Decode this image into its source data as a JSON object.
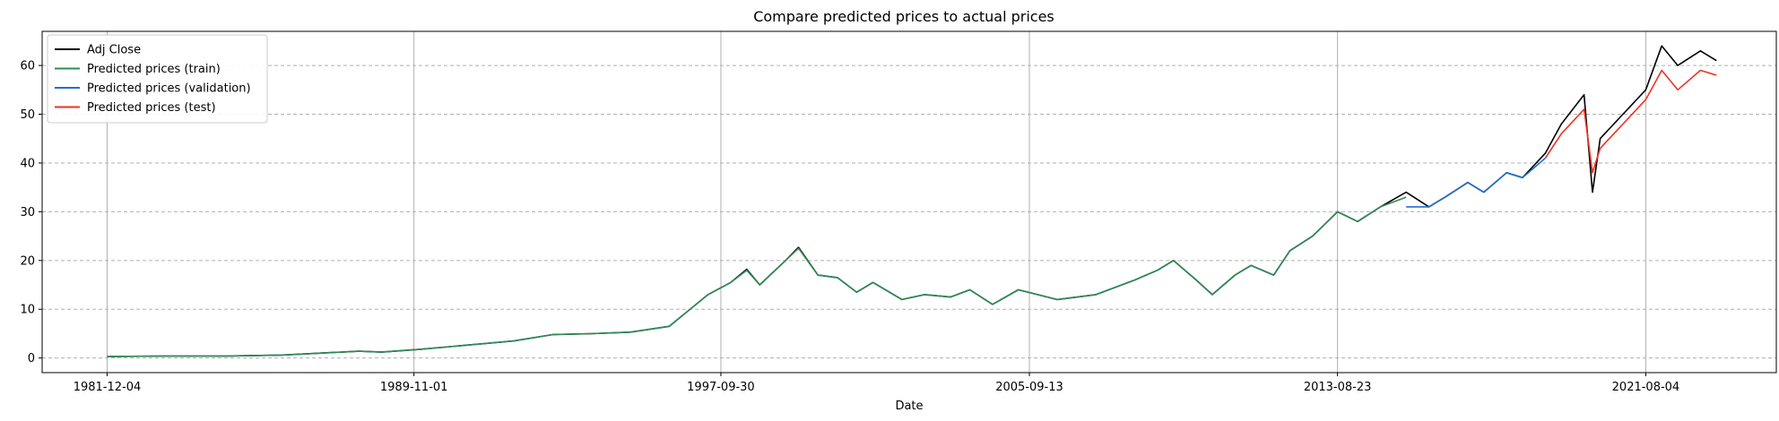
{
  "chart_data": {
    "type": "line",
    "title": "Compare predicted prices to actual prices",
    "xlabel": "Date",
    "ylabel": "",
    "x_axis": "date",
    "xlim": [
      "1980-04-01",
      "2024-12-15"
    ],
    "ylim": [
      -3,
      67
    ],
    "xticks": [
      "1981-12-04",
      "1989-11-01",
      "1997-09-30",
      "2005-09-13",
      "2013-08-23",
      "2021-08-04"
    ],
    "yticks": [
      0,
      10,
      20,
      30,
      40,
      50,
      60
    ],
    "grid": true,
    "legend": {
      "position": "top-left",
      "entries": [
        {
          "label": "Adj Close",
          "color": "#000000"
        },
        {
          "label": "Predicted prices (train)",
          "color": "#2e8b57"
        },
        {
          "label": "Predicted prices (validation)",
          "color": "#1f6fd1"
        },
        {
          "label": "Predicted prices (test)",
          "color": "#ee3322"
        }
      ]
    },
    "series": [
      {
        "name": "Adj Close",
        "color": "#000000",
        "points": [
          [
            "1981-12-04",
            0.3
          ],
          [
            "1983-06-01",
            0.4
          ],
          [
            "1985-01-01",
            0.4
          ],
          [
            "1986-06-01",
            0.6
          ],
          [
            "1987-09-01",
            1.1
          ],
          [
            "1988-06-01",
            1.4
          ],
          [
            "1989-01-01",
            1.2
          ],
          [
            "1990-01-01",
            1.8
          ],
          [
            "1991-01-01",
            2.5
          ],
          [
            "1992-06-01",
            3.5
          ],
          [
            "1993-06-01",
            4.8
          ],
          [
            "1994-06-01",
            5.0
          ],
          [
            "1995-06-01",
            5.3
          ],
          [
            "1996-06-01",
            6.5
          ],
          [
            "1997-06-01",
            13.0
          ],
          [
            "1998-01-01",
            15.5
          ],
          [
            "1998-06-01",
            18.2
          ],
          [
            "1998-10-01",
            15.0
          ],
          [
            "1999-06-01",
            20.0
          ],
          [
            "1999-10-01",
            22.7
          ],
          [
            "2000-04-01",
            17.0
          ],
          [
            "2000-10-01",
            16.5
          ],
          [
            "2001-04-01",
            13.5
          ],
          [
            "2001-09-01",
            15.5
          ],
          [
            "2002-06-01",
            12.0
          ],
          [
            "2003-01-01",
            13.0
          ],
          [
            "2003-09-01",
            12.5
          ],
          [
            "2004-03-01",
            14.0
          ],
          [
            "2004-10-01",
            11.0
          ],
          [
            "2005-06-01",
            14.0
          ],
          [
            "2006-06-01",
            12.0
          ],
          [
            "2007-06-01",
            13.0
          ],
          [
            "2008-06-01",
            16.0
          ],
          [
            "2009-01-01",
            18.0
          ],
          [
            "2009-06-01",
            20.0
          ],
          [
            "2010-01-01",
            16.0
          ],
          [
            "2010-06-01",
            13.0
          ],
          [
            "2011-01-01",
            17.0
          ],
          [
            "2011-06-01",
            19.0
          ],
          [
            "2012-01-01",
            17.0
          ],
          [
            "2012-06-01",
            22.0
          ],
          [
            "2013-01-01",
            25.0
          ],
          [
            "2013-08-23",
            30.0
          ],
          [
            "2014-03-01",
            28.0
          ],
          [
            "2014-10-01",
            31.0
          ],
          [
            "2015-06-01",
            34.0
          ],
          [
            "2016-01-01",
            31.0
          ],
          [
            "2016-06-01",
            33.0
          ],
          [
            "2017-01-01",
            36.0
          ],
          [
            "2017-06-01",
            34.0
          ],
          [
            "2018-01-01",
            38.0
          ],
          [
            "2018-06-01",
            37.0
          ],
          [
            "2019-01-01",
            42.0
          ],
          [
            "2019-06-01",
            48.0
          ],
          [
            "2020-01-01",
            54.0
          ],
          [
            "2020-03-20",
            34.0
          ],
          [
            "2020-06-01",
            45.0
          ],
          [
            "2021-01-01",
            50.0
          ],
          [
            "2021-08-04",
            55.0
          ],
          [
            "2022-01-01",
            64.0
          ],
          [
            "2022-06-01",
            60.0
          ],
          [
            "2023-01-01",
            63.0
          ],
          [
            "2023-06-01",
            61.0
          ]
        ]
      },
      {
        "name": "Predicted prices (train)",
        "color": "#2e8b57",
        "points": [
          [
            "1981-12-04",
            0.3
          ],
          [
            "1983-06-01",
            0.4
          ],
          [
            "1985-01-01",
            0.4
          ],
          [
            "1986-06-01",
            0.6
          ],
          [
            "1987-09-01",
            1.1
          ],
          [
            "1988-06-01",
            1.4
          ],
          [
            "1989-01-01",
            1.2
          ],
          [
            "1990-01-01",
            1.8
          ],
          [
            "1991-01-01",
            2.5
          ],
          [
            "1992-06-01",
            3.5
          ],
          [
            "1993-06-01",
            4.8
          ],
          [
            "1994-06-01",
            5.0
          ],
          [
            "1995-06-01",
            5.3
          ],
          [
            "1996-06-01",
            6.5
          ],
          [
            "1997-06-01",
            13.0
          ],
          [
            "1998-01-01",
            15.5
          ],
          [
            "1998-06-01",
            18.0
          ],
          [
            "1998-10-01",
            15.0
          ],
          [
            "1999-06-01",
            20.0
          ],
          [
            "1999-10-01",
            22.5
          ],
          [
            "2000-04-01",
            17.0
          ],
          [
            "2000-10-01",
            16.5
          ],
          [
            "2001-04-01",
            13.5
          ],
          [
            "2001-09-01",
            15.5
          ],
          [
            "2002-06-01",
            12.0
          ],
          [
            "2003-01-01",
            13.0
          ],
          [
            "2003-09-01",
            12.5
          ],
          [
            "2004-03-01",
            14.0
          ],
          [
            "2004-10-01",
            11.0
          ],
          [
            "2005-06-01",
            14.0
          ],
          [
            "2006-06-01",
            12.0
          ],
          [
            "2007-06-01",
            13.0
          ],
          [
            "2008-06-01",
            16.0
          ],
          [
            "2009-01-01",
            18.0
          ],
          [
            "2009-06-01",
            20.0
          ],
          [
            "2010-01-01",
            16.0
          ],
          [
            "2010-06-01",
            13.0
          ],
          [
            "2011-01-01",
            17.0
          ],
          [
            "2011-06-01",
            19.0
          ],
          [
            "2012-01-01",
            17.0
          ],
          [
            "2012-06-01",
            22.0
          ],
          [
            "2013-01-01",
            25.0
          ],
          [
            "2013-08-23",
            30.0
          ],
          [
            "2014-03-01",
            28.0
          ],
          [
            "2014-10-01",
            31.0
          ],
          [
            "2015-06-01",
            33.0
          ]
        ]
      },
      {
        "name": "Predicted prices (validation)",
        "color": "#1f6fd1",
        "points": [
          [
            "2015-06-01",
            31.0
          ],
          [
            "2016-01-01",
            31.0
          ],
          [
            "2016-06-01",
            33.0
          ],
          [
            "2017-01-01",
            36.0
          ],
          [
            "2017-06-01",
            34.0
          ],
          [
            "2018-01-01",
            38.0
          ],
          [
            "2018-06-01",
            37.0
          ],
          [
            "2019-01-01",
            41.0
          ]
        ]
      },
      {
        "name": "Predicted prices (test)",
        "color": "#ee3322",
        "points": [
          [
            "2019-01-01",
            41.0
          ],
          [
            "2019-06-01",
            46.0
          ],
          [
            "2020-01-01",
            51.0
          ],
          [
            "2020-03-20",
            38.0
          ],
          [
            "2020-06-01",
            43.0
          ],
          [
            "2021-01-01",
            48.0
          ],
          [
            "2021-08-04",
            53.0
          ],
          [
            "2022-01-01",
            59.0
          ],
          [
            "2022-06-01",
            55.0
          ],
          [
            "2023-01-01",
            59.0
          ],
          [
            "2023-06-01",
            58.0
          ]
        ]
      }
    ]
  }
}
